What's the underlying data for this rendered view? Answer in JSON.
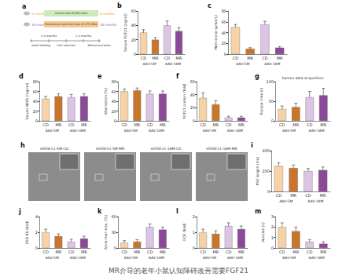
{
  "caption": "MR介导的老年小鼠认知障碍改善需要FGF21",
  "schematic": {
    "panel": "a",
    "start_ages": [
      {
        "text": "3 months",
        "color": "#e8912e"
      },
      {
        "text": "16 months",
        "color": "#9b59b6"
      }
    ],
    "diets": [
      {
        "text": "Control diet (0.86% Met)",
        "color": "#cfe8b8"
      },
      {
        "text": "Methionine restriction diet (0.17% Met)",
        "color": "#f6c88f"
      }
    ],
    "end_ages": [
      {
        "text": "5 months",
        "color": "#e8912e"
      },
      {
        "text": "18 months",
        "color": "#9b59b6"
      }
    ],
    "timeline": [
      "Adult feeding",
      "1.5 months",
      "AAV injection",
      "1.5 months",
      "Behavioral tests"
    ]
  },
  "micrographs": {
    "panel": "h",
    "images": [
      "shFGF21-5M-CD",
      "shFGF21-5M-MR",
      "shFGF21-18M-CD",
      "shFGF21-18M-MR"
    ]
  },
  "chart_data": [
    {
      "panel": "b",
      "type": "bar",
      "ylabel": "Serum FGF21 (pg/ml)",
      "categories": [
        "CD",
        "MR",
        "CD",
        "MR"
      ],
      "groups": [
        "AAV-5M",
        "AAV-18M"
      ],
      "values": [
        30,
        20,
        40,
        32
      ],
      "errors": [
        4,
        3,
        6,
        5
      ],
      "colors": [
        "#f6d2a6",
        "#c8762b",
        "#dcc4e4",
        "#8b4a98"
      ],
      "ylim": [
        0,
        60
      ],
      "yticks": [
        0,
        20,
        40,
        60
      ],
      "grid": false
    },
    {
      "panel": "c",
      "type": "bar",
      "ylabel": "Methionine (μmol/L)",
      "categories": [
        "CD",
        "MR",
        "CD",
        "MR"
      ],
      "groups": [
        "AAV-5M",
        "AAV-18M"
      ],
      "values": [
        50,
        10,
        55,
        12
      ],
      "errors": [
        5,
        2,
        6,
        2
      ],
      "colors": [
        "#f6d2a6",
        "#c8762b",
        "#dcc4e4",
        "#8b4a98"
      ],
      "ylim": [
        0,
        80
      ],
      "yticks": [
        0,
        20,
        40,
        60,
        80
      ],
      "grid": false
    },
    {
      "panel": "d",
      "type": "bar",
      "ylabel": "Serum NEFA (mg/ml)",
      "categories": [
        "CD",
        "MR",
        "CD",
        "MR"
      ],
      "groups": [
        "AAV-5M",
        "AAV-18M"
      ],
      "values": [
        45,
        50,
        48,
        50
      ],
      "errors": [
        5,
        5,
        6,
        5
      ],
      "colors": [
        "#f6d2a6",
        "#c8762b",
        "#dcc4e4",
        "#8b4a98"
      ],
      "ylim": [
        0,
        80
      ],
      "yticks": [
        0,
        20,
        40,
        60,
        80
      ],
      "grid": false
    },
    {
      "panel": "e",
      "type": "bar",
      "ylabel": "Alternation (%)",
      "categories": [
        "CD",
        "MR",
        "CD",
        "MR"
      ],
      "groups": [
        "AAV-5M",
        "AAV-18M"
      ],
      "values": [
        60,
        62,
        55,
        55
      ],
      "errors": [
        5,
        5,
        6,
        6
      ],
      "colors": [
        "#f6d2a6",
        "#c8762b",
        "#dcc4e4",
        "#8b4a98"
      ],
      "ylim": [
        0,
        80
      ],
      "yticks": [
        0,
        20,
        40,
        60,
        80
      ],
      "grid": false
    },
    {
      "panel": "f",
      "type": "bar",
      "ylabel": "FGF21 protein (fold)",
      "categories": [
        "CD",
        "MR",
        "CD",
        "MR"
      ],
      "groups": [
        "AAV-5M",
        "AAV-18M"
      ],
      "values": [
        35,
        25,
        5,
        5
      ],
      "errors": [
        8,
        6,
        2,
        2
      ],
      "colors": [
        "#f6d2a6",
        "#c8762b",
        "#dcc4e4",
        "#8b4a98"
      ],
      "ylim": [
        0,
        60
      ],
      "yticks": [
        0,
        20,
        40,
        60
      ],
      "grid": false
    },
    {
      "panel": "g",
      "type": "bar",
      "title": "barnes data acquisition",
      "ylabel": "Escape time (s)",
      "categories": [
        "CD",
        "MR",
        "CD",
        "MR"
      ],
      "groups": [
        "AAV-5M",
        "AAV-18M"
      ],
      "values": [
        30,
        35,
        60,
        65
      ],
      "errors": [
        8,
        10,
        15,
        18
      ],
      "colors": [
        "#f6d2a6",
        "#c8762b",
        "#dcc4e4",
        "#8b4a98"
      ],
      "ylim": [
        0,
        100
      ],
      "yticks": [
        0,
        50,
        100
      ],
      "grid": false
    },
    {
      "panel": "i",
      "type": "bar",
      "ylabel": "PSD length (nm)",
      "categories": [
        "CD",
        "MR",
        "CD",
        "MR"
      ],
      "groups": [
        "AAV-5M",
        "AAV-18M"
      ],
      "values": [
        250,
        230,
        200,
        210
      ],
      "errors": [
        30,
        30,
        25,
        30
      ],
      "colors": [
        "#f6d2a6",
        "#c8762b",
        "#dcc4e4",
        "#8b4a98"
      ],
      "ylim": [
        0,
        400
      ],
      "yticks": [
        0,
        200,
        400
      ],
      "grid": false
    },
    {
      "panel": "j",
      "type": "bar",
      "ylabel": "PSD-95 (fold)",
      "categories": [
        "CD",
        "MR",
        "CD",
        "MR"
      ],
      "groups": [
        "AAV-5M",
        "AAV-18M"
      ],
      "values": [
        2.0,
        1.5,
        0.8,
        1.2
      ],
      "errors": [
        0.4,
        0.3,
        0.3,
        0.3
      ],
      "colors": [
        "#f6d2a6",
        "#c8762b",
        "#dcc4e4",
        "#8b4a98"
      ],
      "ylim": [
        0,
        4
      ],
      "yticks": [
        0,
        2,
        4
      ],
      "grid": false
    },
    {
      "panel": "k",
      "type": "bar",
      "ylabel": "Abnormal mito. (%)",
      "categories": [
        "CD",
        "MR",
        "CD",
        "MR"
      ],
      "groups": [
        "AAV-5M",
        "AAV-18M"
      ],
      "values": [
        10,
        12,
        40,
        35
      ],
      "errors": [
        4,
        4,
        6,
        5
      ],
      "colors": [
        "#f6d2a6",
        "#c8762b",
        "#dcc4e4",
        "#8b4a98"
      ],
      "ylim": [
        0,
        60
      ],
      "yticks": [
        0,
        30,
        60
      ],
      "grid": false
    },
    {
      "panel": "l",
      "type": "bar",
      "ylabel": "OCR (fold)",
      "categories": [
        "CD",
        "MR",
        "CD",
        "MR"
      ],
      "groups": [
        "AAV-5M",
        "AAV-18M"
      ],
      "values": [
        1.0,
        0.9,
        1.4,
        1.2
      ],
      "errors": [
        0.2,
        0.2,
        0.2,
        0.2
      ],
      "colors": [
        "#f6d2a6",
        "#c8762b",
        "#dcc4e4",
        "#8b4a98"
      ],
      "ylim": [
        0,
        2
      ],
      "yticks": [
        0,
        1,
        2
      ],
      "grid": false
    },
    {
      "panel": "m",
      "type": "bar",
      "ylabel": "Vesicles (n)",
      "categories": [
        "CD",
        "MR",
        "CD",
        "MR"
      ],
      "groups": [
        "AAV-5M",
        "AAV-18M"
      ],
      "values": [
        2.0,
        1.6,
        0.6,
        0.4
      ],
      "errors": [
        0.4,
        0.4,
        0.2,
        0.2
      ],
      "colors": [
        "#f6d2a6",
        "#c8762b",
        "#dcc4e4",
        "#8b4a98"
      ],
      "ylim": [
        0,
        3
      ],
      "yticks": [
        0,
        1,
        2,
        3
      ],
      "grid": false
    }
  ]
}
